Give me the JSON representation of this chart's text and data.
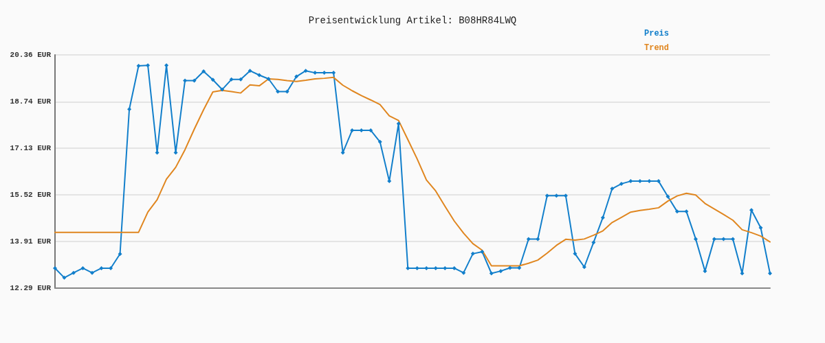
{
  "chart_data": {
    "type": "line",
    "title": "Preisentwicklung Artikel: B08HR84LWQ",
    "categories": [
      null,
      null,
      null,
      null,
      null,
      null,
      null,
      null,
      null,
      null,
      null,
      null,
      null,
      null,
      null,
      null,
      null,
      null,
      null,
      null,
      null,
      null,
      null,
      null,
      null,
      null,
      null,
      null,
      null,
      null,
      null,
      null,
      null,
      null,
      null,
      null,
      null,
      null,
      null,
      null,
      null,
      null,
      null,
      null,
      null,
      null,
      null,
      null,
      null,
      null,
      null,
      null,
      null,
      null,
      null,
      null,
      null,
      null,
      null,
      null,
      null,
      null,
      null,
      null,
      null,
      null,
      null,
      null,
      null,
      null,
      null,
      null,
      null,
      null,
      null,
      null,
      null,
      null
    ],
    "series": [
      {
        "name": "Preis",
        "color": "#127fcb",
        "marker": "diamond",
        "values": [
          12.98,
          12.65,
          12.82,
          12.98,
          12.82,
          12.98,
          12.98,
          13.47,
          18.48,
          19.98,
          20.0,
          16.98,
          20.0,
          16.98,
          19.47,
          19.47,
          19.79,
          19.5,
          19.16,
          19.51,
          19.51,
          19.81,
          19.66,
          19.53,
          19.09,
          19.09,
          19.61,
          19.81,
          19.74,
          19.74,
          19.74,
          16.98,
          17.75,
          17.75,
          17.75,
          17.35,
          15.99,
          17.98,
          12.98,
          12.98,
          12.98,
          12.98,
          12.98,
          12.98,
          12.82,
          13.48,
          13.55,
          12.8,
          12.88,
          12.99,
          12.99,
          13.99,
          13.99,
          15.49,
          15.49,
          15.49,
          13.48,
          13.02,
          13.87,
          14.73,
          15.73,
          15.9,
          15.99,
          15.99,
          15.99,
          15.99,
          15.46,
          14.94,
          14.94,
          13.99,
          12.88,
          13.99,
          13.99,
          13.99,
          12.8,
          14.99,
          14.38,
          12.8
        ]
      },
      {
        "name": "Trend",
        "color": "#e0861f",
        "marker": "none",
        "values": [
          14.22,
          14.22,
          14.22,
          14.22,
          14.22,
          14.22,
          14.22,
          14.22,
          14.22,
          14.22,
          14.92,
          15.35,
          16.06,
          16.47,
          17.08,
          17.79,
          18.46,
          19.08,
          19.13,
          19.09,
          19.04,
          19.32,
          19.29,
          19.53,
          19.51,
          19.47,
          19.44,
          19.48,
          19.53,
          19.55,
          19.58,
          19.31,
          19.12,
          18.95,
          18.8,
          18.64,
          18.25,
          18.09,
          17.43,
          16.76,
          16.03,
          15.65,
          15.12,
          14.61,
          14.19,
          13.83,
          13.6,
          13.06,
          13.06,
          13.06,
          13.06,
          13.15,
          13.26,
          13.5,
          13.77,
          13.98,
          13.95,
          13.99,
          14.12,
          14.27,
          14.56,
          14.74,
          14.92,
          14.98,
          15.02,
          15.07,
          15.3,
          15.48,
          15.57,
          15.51,
          15.22,
          15.03,
          14.84,
          14.64,
          14.31,
          14.21,
          14.09,
          13.89
        ]
      }
    ],
    "ylim": [
      12.29,
      20.36
    ],
    "yticks": [
      {
        "value": 12.29,
        "label": "12.29 EUR"
      },
      {
        "value": 13.91,
        "label": "13.91 EUR"
      },
      {
        "value": 15.52,
        "label": "15.52 EUR"
      },
      {
        "value": 17.13,
        "label": "17.13 EUR"
      },
      {
        "value": 18.74,
        "label": "18.74 EUR"
      },
      {
        "value": 20.36,
        "label": "20.36 EUR"
      }
    ],
    "grid": "y",
    "legend": "top right",
    "line_style": "solid"
  }
}
